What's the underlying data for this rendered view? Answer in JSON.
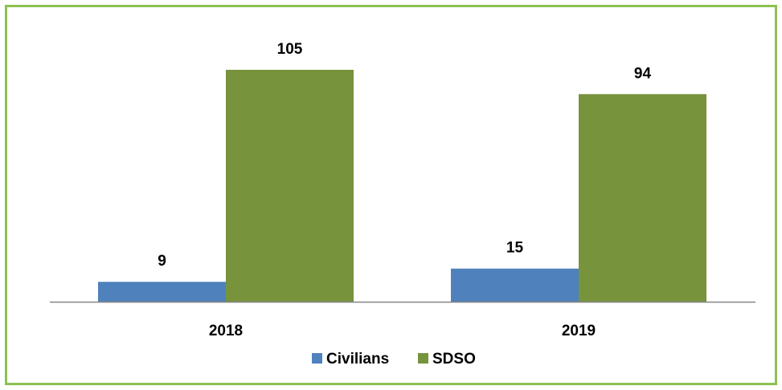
{
  "chart_data": {
    "type": "bar",
    "title": "",
    "xlabel": "",
    "ylabel": "",
    "categories": [
      "2018",
      "2019"
    ],
    "series": [
      {
        "name": "Civilians",
        "values": [
          9,
          15
        ],
        "color": "#4f81bd"
      },
      {
        "name": "SDSO",
        "values": [
          105,
          94
        ],
        "color": "#77933c"
      }
    ],
    "ylim": [
      0,
      105
    ],
    "grid": false,
    "data_labels": true,
    "legend_position": "bottom"
  },
  "colors": {
    "frame_border": "#8cc152",
    "axis_line": "#868686"
  }
}
